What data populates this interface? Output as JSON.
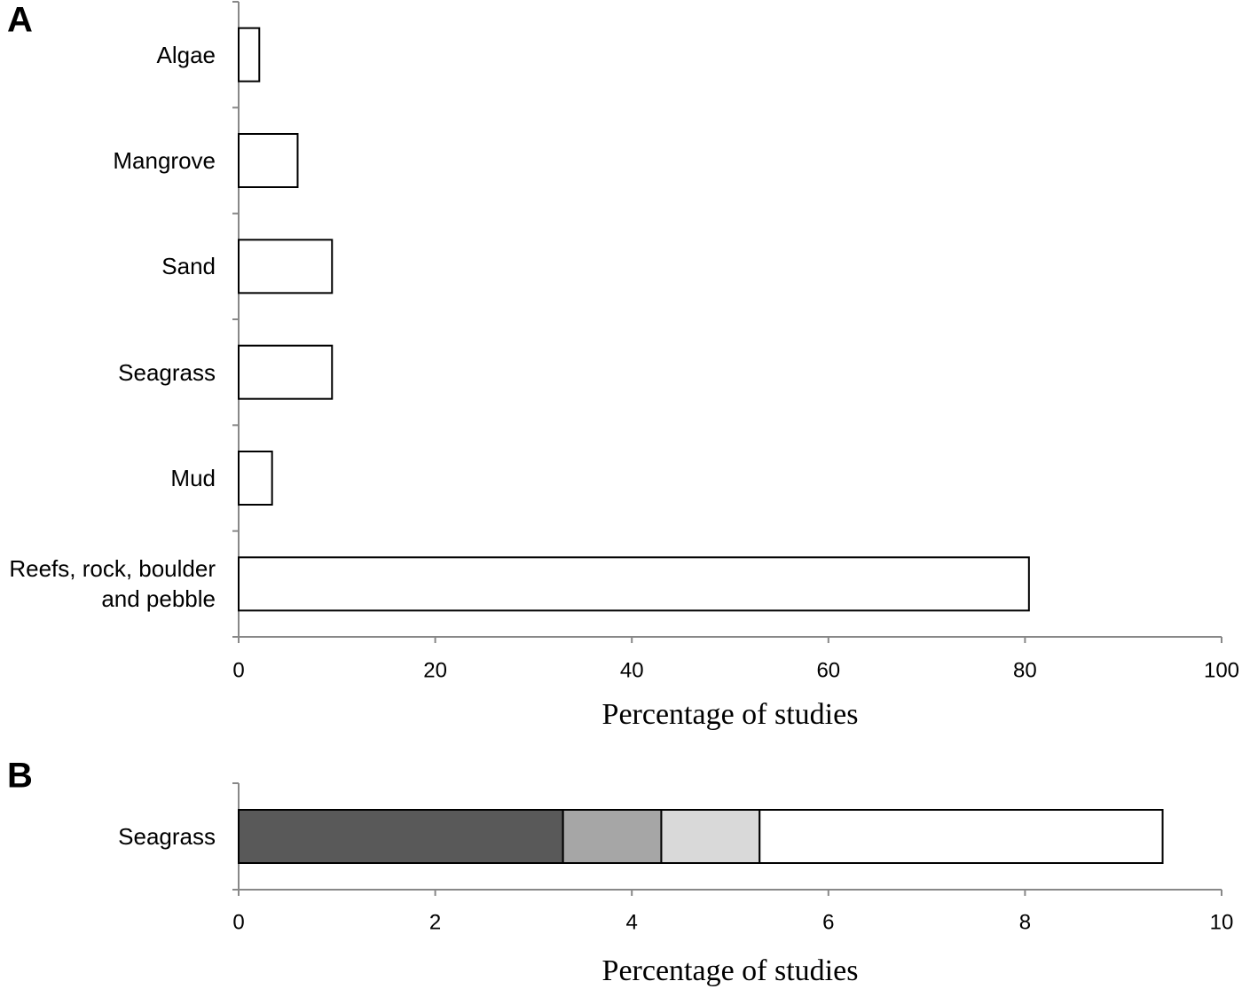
{
  "chart_data": [
    {
      "type": "bar",
      "orientation": "horizontal",
      "panel_label": "A",
      "categories": [
        "Algae",
        "Mangrove",
        "Sand",
        "Seagrass",
        "Mud",
        "Reefs, rock, boulder and pebble"
      ],
      "values": [
        2.1,
        6.0,
        9.5,
        9.5,
        3.4,
        80.4
      ],
      "color": "#ffffff",
      "xlabel": "Percentage of studies",
      "xlim": [
        0,
        100
      ],
      "xticks": [
        0,
        20,
        40,
        60,
        80,
        100
      ]
    },
    {
      "type": "stacked_bar",
      "orientation": "horizontal",
      "panel_label": "B",
      "categories": [
        "Seagrass"
      ],
      "series": [
        {
          "color": "#595959",
          "values": [
            3.3
          ]
        },
        {
          "color": "#a6a6a6",
          "values": [
            1.0
          ]
        },
        {
          "color": "#d9d9d9",
          "values": [
            1.0
          ]
        },
        {
          "color": "#ffffff",
          "values": [
            4.1
          ]
        }
      ],
      "xlabel": "Percentage of studies",
      "xlim": [
        0,
        10
      ],
      "xticks": [
        0,
        2,
        4,
        6,
        8,
        10
      ]
    }
  ]
}
